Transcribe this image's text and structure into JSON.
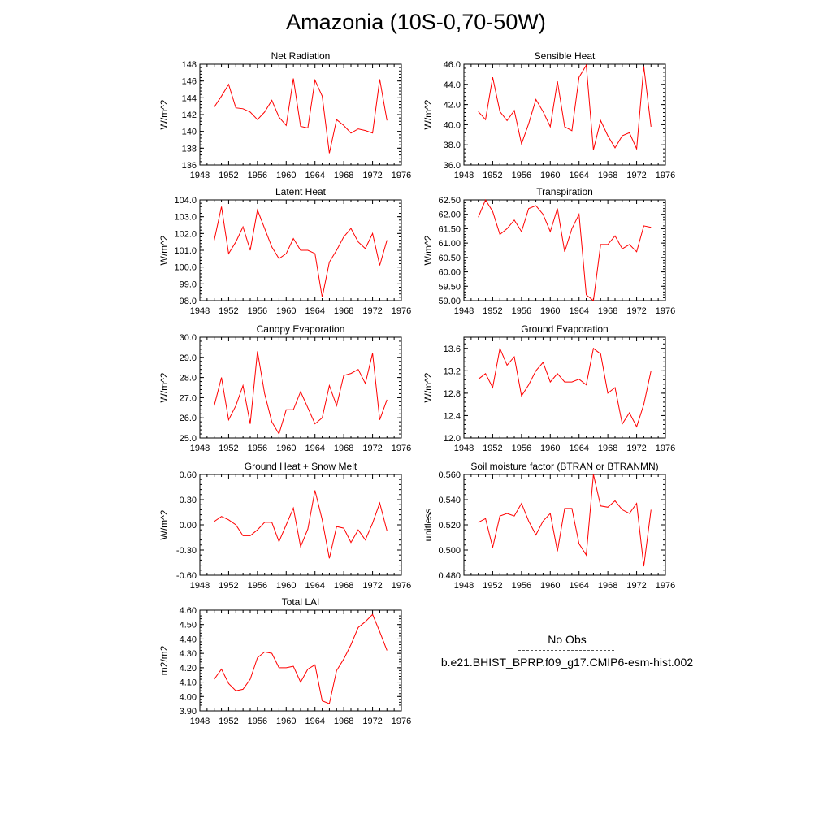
{
  "title": "Amazonia (10S-0,70-50W)",
  "legend": {
    "obs_label": "No Obs",
    "model_label": "b.e21.BHIST_BPRP.f09_g17.CMIP6-esm-hist.002",
    "model_color": "#ff0000"
  },
  "chart_data": [
    {
      "type": "line",
      "title": "Net Radiation",
      "ylabel": "W/m^2",
      "xlim": [
        1948,
        1976
      ],
      "ylim": [
        136,
        148
      ],
      "xticks": [
        "1948",
        "1952",
        "1956",
        "1960",
        "1964",
        "1968",
        "1972",
        "1976"
      ],
      "yticks": [
        "136",
        "138",
        "140",
        "142",
        "144",
        "146",
        "148"
      ],
      "x": [
        1950,
        1951,
        1952,
        1953,
        1954,
        1955,
        1956,
        1957,
        1958,
        1959,
        1960,
        1961,
        1962,
        1963,
        1964,
        1965,
        1966,
        1967,
        1968,
        1969,
        1970,
        1971,
        1972,
        1973,
        1974
      ],
      "series": [
        {
          "color": "#ff0000",
          "values": [
            142.9,
            144.2,
            145.6,
            142.8,
            142.7,
            142.3,
            141.4,
            142.3,
            143.7,
            141.7,
            140.7,
            146.3,
            140.6,
            140.4,
            146.1,
            144.2,
            137.4,
            141.4,
            140.7,
            139.8,
            140.3,
            140.1,
            139.8,
            146.2,
            141.3
          ]
        }
      ]
    },
    {
      "type": "line",
      "title": "Sensible Heat",
      "ylabel": "W/m^2",
      "xlim": [
        1948,
        1976
      ],
      "ylim": [
        36,
        46
      ],
      "xticks": [
        "1948",
        "1952",
        "1956",
        "1960",
        "1964",
        "1968",
        "1972",
        "1976"
      ],
      "yticks": [
        "36.0",
        "38.0",
        "40.0",
        "42.0",
        "44.0",
        "46.0"
      ],
      "x": [
        1950,
        1951,
        1952,
        1953,
        1954,
        1955,
        1956,
        1957,
        1958,
        1959,
        1960,
        1961,
        1962,
        1963,
        1964,
        1965,
        1966,
        1967,
        1968,
        1969,
        1970,
        1971,
        1972,
        1973,
        1974
      ],
      "series": [
        {
          "color": "#ff0000",
          "values": [
            41.3,
            40.5,
            44.7,
            41.3,
            40.4,
            41.4,
            38.1,
            40.1,
            42.5,
            41.3,
            39.8,
            44.3,
            39.8,
            39.4,
            44.7,
            45.9,
            37.5,
            40.4,
            38.9,
            37.7,
            38.9,
            39.2,
            37.6,
            45.8,
            39.8
          ]
        }
      ]
    },
    {
      "type": "line",
      "title": "Latent Heat",
      "ylabel": "W/m^2",
      "xlim": [
        1948,
        1976
      ],
      "ylim": [
        98,
        104
      ],
      "xticks": [
        "1948",
        "1952",
        "1956",
        "1960",
        "1964",
        "1968",
        "1972",
        "1976"
      ],
      "yticks": [
        "98.0",
        "99.0",
        "100.0",
        "101.0",
        "102.0",
        "103.0",
        "104.0"
      ],
      "x": [
        1950,
        1951,
        1952,
        1953,
        1954,
        1955,
        1956,
        1957,
        1958,
        1959,
        1960,
        1961,
        1962,
        1963,
        1964,
        1965,
        1966,
        1967,
        1968,
        1969,
        1970,
        1971,
        1972,
        1973,
        1974
      ],
      "series": [
        {
          "color": "#ff0000",
          "values": [
            101.6,
            103.6,
            100.8,
            101.5,
            102.4,
            101.0,
            103.4,
            102.3,
            101.2,
            100.5,
            100.8,
            101.7,
            101.0,
            101.0,
            100.8,
            98.2,
            100.3,
            101.0,
            101.8,
            102.3,
            101.5,
            101.1,
            102.0,
            100.1,
            101.6
          ]
        }
      ]
    },
    {
      "type": "line",
      "title": "Transpiration",
      "ylabel": "W/m^2",
      "xlim": [
        1948,
        1976
      ],
      "ylim": [
        59,
        62.5
      ],
      "xticks": [
        "1948",
        "1952",
        "1956",
        "1960",
        "1964",
        "1968",
        "1972",
        "1976"
      ],
      "yticks": [
        "59.00",
        "59.50",
        "60.00",
        "60.50",
        "61.00",
        "61.50",
        "62.00",
        "62.50"
      ],
      "x": [
        1950,
        1951,
        1952,
        1953,
        1954,
        1955,
        1956,
        1957,
        1958,
        1959,
        1960,
        1961,
        1962,
        1963,
        1964,
        1965,
        1966,
        1967,
        1968,
        1969,
        1970,
        1971,
        1972,
        1973,
        1974
      ],
      "series": [
        {
          "color": "#ff0000",
          "values": [
            61.9,
            62.5,
            62.1,
            61.3,
            61.5,
            61.8,
            61.4,
            62.2,
            62.3,
            62.0,
            61.4,
            62.2,
            60.7,
            61.5,
            62.0,
            59.2,
            59.0,
            60.95,
            60.95,
            61.25,
            60.8,
            60.95,
            60.7,
            61.6,
            61.55
          ]
        }
      ]
    },
    {
      "type": "line",
      "title": "Canopy Evaporation",
      "ylabel": "W/m^2",
      "xlim": [
        1948,
        1976
      ],
      "ylim": [
        25,
        30
      ],
      "xticks": [
        "1948",
        "1952",
        "1956",
        "1960",
        "1964",
        "1968",
        "1972",
        "1976"
      ],
      "yticks": [
        "25.0",
        "26.0",
        "27.0",
        "28.0",
        "29.0",
        "30.0"
      ],
      "x": [
        1950,
        1951,
        1952,
        1953,
        1954,
        1955,
        1956,
        1957,
        1958,
        1959,
        1960,
        1961,
        1962,
        1963,
        1964,
        1965,
        1966,
        1967,
        1968,
        1969,
        1970,
        1971,
        1972,
        1973,
        1974
      ],
      "series": [
        {
          "color": "#ff0000",
          "values": [
            26.6,
            28.0,
            25.9,
            26.6,
            27.6,
            25.7,
            29.3,
            27.2,
            25.8,
            25.2,
            26.4,
            26.4,
            27.3,
            26.5,
            25.7,
            26.0,
            27.6,
            26.6,
            28.1,
            28.2,
            28.4,
            27.7,
            29.2,
            25.9,
            26.9
          ]
        }
      ]
    },
    {
      "type": "line",
      "title": "Ground Evaporation",
      "ylabel": "W/m^2",
      "xlim": [
        1948,
        1976
      ],
      "ylim": [
        12,
        13.8
      ],
      "xticks": [
        "1948",
        "1952",
        "1956",
        "1960",
        "1964",
        "1968",
        "1972",
        "1976"
      ],
      "yticks": [
        "12.0",
        "12.4",
        "12.8",
        "13.2",
        "13.6"
      ],
      "x": [
        1950,
        1951,
        1952,
        1953,
        1954,
        1955,
        1956,
        1957,
        1958,
        1959,
        1960,
        1961,
        1962,
        1963,
        1964,
        1965,
        1966,
        1967,
        1968,
        1969,
        1970,
        1971,
        1972,
        1973,
        1974
      ],
      "series": [
        {
          "color": "#ff0000",
          "values": [
            13.05,
            13.15,
            12.9,
            13.6,
            13.3,
            13.45,
            12.75,
            12.95,
            13.2,
            13.35,
            13.0,
            13.15,
            13.0,
            13.0,
            13.05,
            12.95,
            13.6,
            13.5,
            12.8,
            12.9,
            12.25,
            12.45,
            12.2,
            12.6,
            13.2
          ]
        }
      ]
    },
    {
      "type": "line",
      "title": "Ground Heat + Snow Melt",
      "ylabel": "W/m^2",
      "xlim": [
        1948,
        1976
      ],
      "ylim": [
        -0.6,
        0.6
      ],
      "xticks": [
        "1948",
        "1952",
        "1956",
        "1960",
        "1964",
        "1968",
        "1972",
        "1976"
      ],
      "yticks": [
        "-0.60",
        "-0.30",
        "0.00",
        "0.30",
        "0.60"
      ],
      "x": [
        1950,
        1951,
        1952,
        1953,
        1954,
        1955,
        1956,
        1957,
        1958,
        1959,
        1960,
        1961,
        1962,
        1963,
        1964,
        1965,
        1966,
        1967,
        1968,
        1969,
        1970,
        1971,
        1972,
        1973,
        1974
      ],
      "series": [
        {
          "color": "#ff0000",
          "values": [
            0.04,
            0.1,
            0.06,
            0.0,
            -0.13,
            -0.13,
            -0.06,
            0.03,
            0.03,
            -0.2,
            0.0,
            0.2,
            -0.26,
            -0.05,
            0.41,
            0.06,
            -0.4,
            -0.02,
            -0.04,
            -0.21,
            -0.06,
            -0.18,
            0.02,
            0.26,
            -0.07
          ]
        }
      ]
    },
    {
      "type": "line",
      "title": "Soil moisture factor (BTRAN or BTRANMN)",
      "ylabel": "unitless",
      "xlim": [
        1948,
        1976
      ],
      "ylim": [
        0.48,
        0.56
      ],
      "xticks": [
        "1948",
        "1952",
        "1956",
        "1960",
        "1964",
        "1968",
        "1972",
        "1976"
      ],
      "yticks": [
        "0.480",
        "0.500",
        "0.520",
        "0.540",
        "0.560"
      ],
      "x": [
        1950,
        1951,
        1952,
        1953,
        1954,
        1955,
        1956,
        1957,
        1958,
        1959,
        1960,
        1961,
        1962,
        1963,
        1964,
        1965,
        1966,
        1967,
        1968,
        1969,
        1970,
        1971,
        1972,
        1973,
        1974
      ],
      "series": [
        {
          "color": "#ff0000",
          "values": [
            0.522,
            0.525,
            0.502,
            0.527,
            0.529,
            0.527,
            0.537,
            0.523,
            0.512,
            0.523,
            0.529,
            0.499,
            0.533,
            0.533,
            0.505,
            0.496,
            0.56,
            0.535,
            0.534,
            0.539,
            0.532,
            0.529,
            0.537,
            0.487,
            0.532
          ]
        }
      ]
    },
    {
      "type": "line",
      "title": "Total LAI",
      "ylabel": "m2/m2",
      "xlim": [
        1948,
        1976
      ],
      "ylim": [
        3.9,
        4.6
      ],
      "xticks": [
        "1948",
        "1952",
        "1956",
        "1960",
        "1964",
        "1968",
        "1972",
        "1976"
      ],
      "yticks": [
        "3.90",
        "4.00",
        "4.10",
        "4.20",
        "4.30",
        "4.40",
        "4.50",
        "4.60"
      ],
      "x": [
        1950,
        1951,
        1952,
        1953,
        1954,
        1955,
        1956,
        1957,
        1958,
        1959,
        1960,
        1961,
        1962,
        1963,
        1964,
        1965,
        1966,
        1967,
        1968,
        1969,
        1970,
        1971,
        1972,
        1973,
        1974
      ],
      "series": [
        {
          "color": "#ff0000",
          "values": [
            4.12,
            4.19,
            4.09,
            4.04,
            4.05,
            4.12,
            4.27,
            4.31,
            4.3,
            4.2,
            4.2,
            4.21,
            4.1,
            4.19,
            4.22,
            3.97,
            3.95,
            4.18,
            4.26,
            4.36,
            4.48,
            4.52,
            4.57,
            4.45,
            4.32
          ]
        }
      ]
    }
  ]
}
